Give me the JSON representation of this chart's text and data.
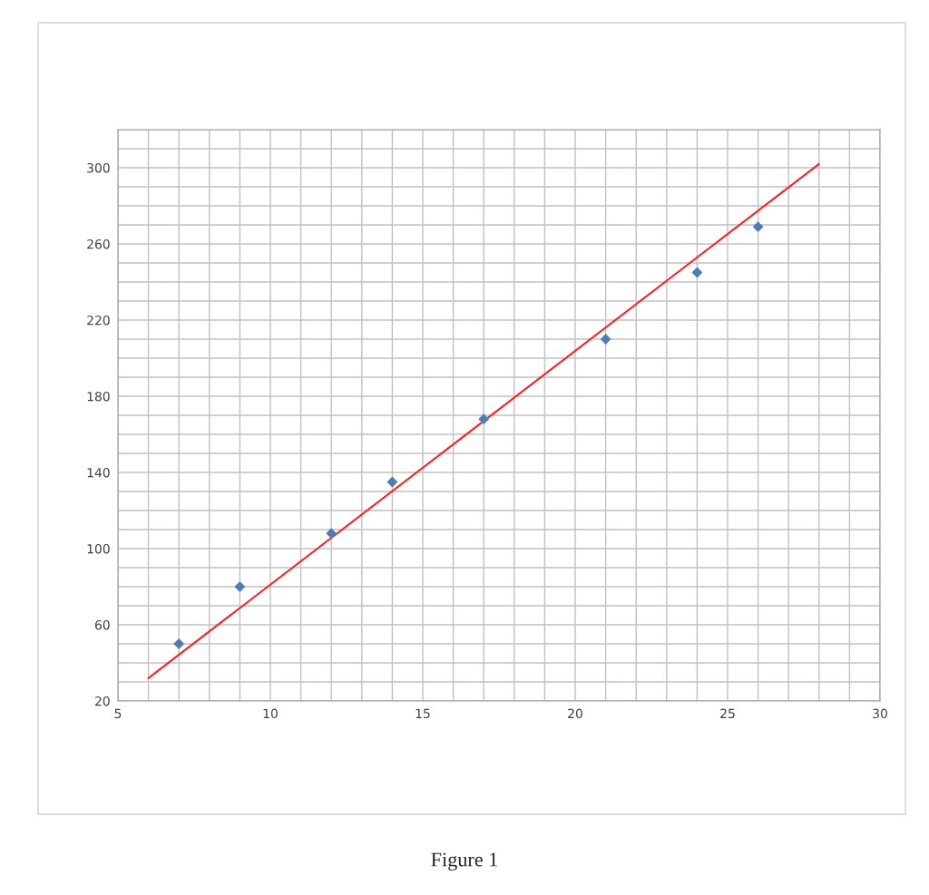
{
  "chart_data": {
    "type": "scatter",
    "annotations": [
      "Figure 1"
    ],
    "series": [
      {
        "color": "#4a7ebb",
        "marker": "diamond",
        "x": [
          7,
          9,
          12,
          14,
          17,
          21,
          24,
          26
        ],
        "values": [
          50,
          80,
          108,
          135,
          168,
          210,
          245,
          269
        ]
      },
      {
        "type": "line",
        "color": "#ff2020",
        "marker": "none",
        "line_style": "solid",
        "x": [
          6,
          28
        ],
        "values": [
          32,
          302
        ]
      }
    ],
    "xlim": [
      5,
      30
    ],
    "xticks": [
      5,
      {
        "value": 6,
        "label": null
      },
      {
        "value": 7,
        "label": null
      },
      {
        "value": 8,
        "label": null
      },
      {
        "value": 9,
        "label": null
      },
      10,
      {
        "value": 11,
        "label": null
      },
      {
        "value": 12,
        "label": null
      },
      {
        "value": 13,
        "label": null
      },
      {
        "value": 14,
        "label": null
      },
      15,
      {
        "value": 16,
        "label": null
      },
      {
        "value": 17,
        "label": null
      },
      {
        "value": 18,
        "label": null
      },
      {
        "value": 19,
        "label": null
      },
      20,
      {
        "value": 21,
        "label": null
      },
      {
        "value": 22,
        "label": null
      },
      {
        "value": 23,
        "label": null
      },
      {
        "value": 24,
        "label": null
      },
      25,
      {
        "value": 26,
        "label": null
      },
      {
        "value": 27,
        "label": null
      },
      {
        "value": 28,
        "label": null
      },
      {
        "value": 29,
        "label": null
      },
      30
    ],
    "ylim": [
      20,
      320
    ],
    "yticks": [
      20,
      {
        "value": 30,
        "label": null
      },
      {
        "value": 40,
        "label": null
      },
      {
        "value": 50,
        "label": null
      },
      60,
      {
        "value": 70,
        "label": null
      },
      {
        "value": 80,
        "label": null
      },
      {
        "value": 90,
        "label": null
      },
      100,
      {
        "value": 110,
        "label": null
      },
      {
        "value": 120,
        "label": null
      },
      {
        "value": 130,
        "label": null
      },
      140,
      {
        "value": 150,
        "label": null
      },
      {
        "value": 160,
        "label": null
      },
      {
        "value": 170,
        "label": null
      },
      180,
      {
        "value": 190,
        "label": null
      },
      {
        "value": 200,
        "label": null
      },
      {
        "value": 210,
        "label": null
      },
      220,
      {
        "value": 230,
        "label": null
      },
      {
        "value": 240,
        "label": null
      },
      {
        "value": 250,
        "label": null
      },
      260,
      {
        "value": 270,
        "label": null
      },
      {
        "value": 280,
        "label": null
      },
      {
        "value": 290,
        "label": null
      },
      300,
      {
        "value": 310,
        "label": null
      },
      {
        "value": 320,
        "label": null
      }
    ],
    "grid": true
  }
}
